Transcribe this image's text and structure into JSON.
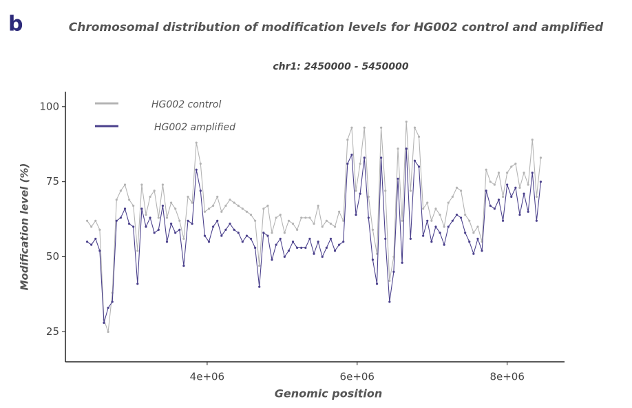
{
  "chart_data": {
    "type": "line",
    "panel_label": "b",
    "title": "Chromosomal distribution of modification levels for HG002 control and amplified",
    "subtitle": "chr1: 2450000 - 5450000",
    "xlabel": "Genomic position",
    "ylabel": "Modification level (%)",
    "x": [
      2400000,
      2456000,
      2512000,
      2568000,
      2624000,
      2680000,
      2736000,
      2792000,
      2848000,
      2904000,
      2960000,
      3016000,
      3072000,
      3128000,
      3184000,
      3240000,
      3296000,
      3352000,
      3408000,
      3464000,
      3520000,
      3576000,
      3632000,
      3688000,
      3744000,
      3800000,
      3856000,
      3912000,
      3968000,
      4024000,
      4080000,
      4136000,
      4192000,
      4248000,
      4304000,
      4360000,
      4416000,
      4472000,
      4528000,
      4584000,
      4640000,
      4696000,
      4752000,
      4808000,
      4864000,
      4920000,
      4976000,
      5032000,
      5088000,
      5144000,
      5200000,
      5256000,
      5312000,
      5368000,
      5424000,
      5480000,
      5536000,
      5592000,
      5648000,
      5704000,
      5760000,
      5816000,
      5872000,
      5928000,
      5984000,
      6040000,
      6096000,
      6152000,
      6208000,
      6264000,
      6320000,
      6376000,
      6432000,
      6488000,
      6544000,
      6600000,
      6656000,
      6712000,
      6768000,
      6824000,
      6880000,
      6936000,
      6992000,
      7048000,
      7104000,
      7160000,
      7216000,
      7272000,
      7328000,
      7384000,
      7440000,
      7496000,
      7552000,
      7608000,
      7664000,
      7720000,
      7776000,
      7832000,
      7888000,
      7944000,
      8000000,
      8056000,
      8112000,
      8168000,
      8224000,
      8280000,
      8336000,
      8392000,
      8448000
    ],
    "series": [
      {
        "name": "HG002 control",
        "color": "#b4b4b4",
        "values": [
          62,
          60,
          62,
          59,
          29,
          25,
          38,
          69,
          72,
          74,
          69,
          67,
          52,
          74,
          64,
          70,
          72,
          63,
          74,
          63,
          68,
          66,
          62,
          56,
          70,
          68,
          88,
          81,
          65,
          66,
          67,
          70,
          65,
          67,
          69,
          68,
          67,
          66,
          65,
          64,
          62,
          47,
          66,
          67,
          58,
          63,
          64,
          58,
          62,
          61,
          59,
          63,
          63,
          63,
          61,
          67,
          60,
          62,
          61,
          60,
          65,
          62,
          89,
          93,
          72,
          81,
          93,
          70,
          59,
          51,
          93,
          72,
          42,
          50,
          86,
          62,
          95,
          72,
          93,
          90,
          66,
          68,
          62,
          66,
          64,
          60,
          68,
          70,
          73,
          72,
          64,
          62,
          58,
          60,
          55,
          79,
          75,
          74,
          78,
          70,
          78,
          80,
          81,
          73,
          78,
          74,
          89,
          70,
          83
        ]
      },
      {
        "name": "HG002 amplified",
        "color": "#4b418c",
        "values": [
          55,
          54,
          56,
          52,
          28,
          33,
          35,
          62,
          63,
          66,
          61,
          60,
          41,
          66,
          60,
          63,
          58,
          59,
          67,
          55,
          61,
          58,
          59,
          47,
          62,
          61,
          79,
          72,
          57,
          55,
          60,
          62,
          57,
          59,
          61,
          59,
          58,
          55,
          57,
          56,
          53,
          40,
          58,
          57,
          49,
          54,
          56,
          50,
          52,
          55,
          53,
          53,
          53,
          56,
          51,
          55,
          50,
          53,
          56,
          52,
          54,
          55,
          81,
          84,
          64,
          71,
          83,
          63,
          49,
          41,
          83,
          56,
          35,
          45,
          76,
          48,
          86,
          56,
          82,
          80,
          57,
          62,
          55,
          60,
          58,
          54,
          60,
          62,
          64,
          63,
          58,
          55,
          51,
          56,
          52,
          72,
          67,
          66,
          69,
          62,
          74,
          70,
          73,
          64,
          71,
          65,
          78,
          62,
          75
        ]
      }
    ],
    "xlim": [
      2110000,
      8765000
    ],
    "xticks": [
      {
        "value": 4000000,
        "label": "4e+06"
      },
      {
        "value": 6000000,
        "label": "6e+06"
      },
      {
        "value": 8000000,
        "label": "8e+06"
      }
    ],
    "ylim": [
      15,
      105
    ],
    "yticks": [
      25,
      50,
      75,
      100
    ],
    "legend": "top-left"
  }
}
